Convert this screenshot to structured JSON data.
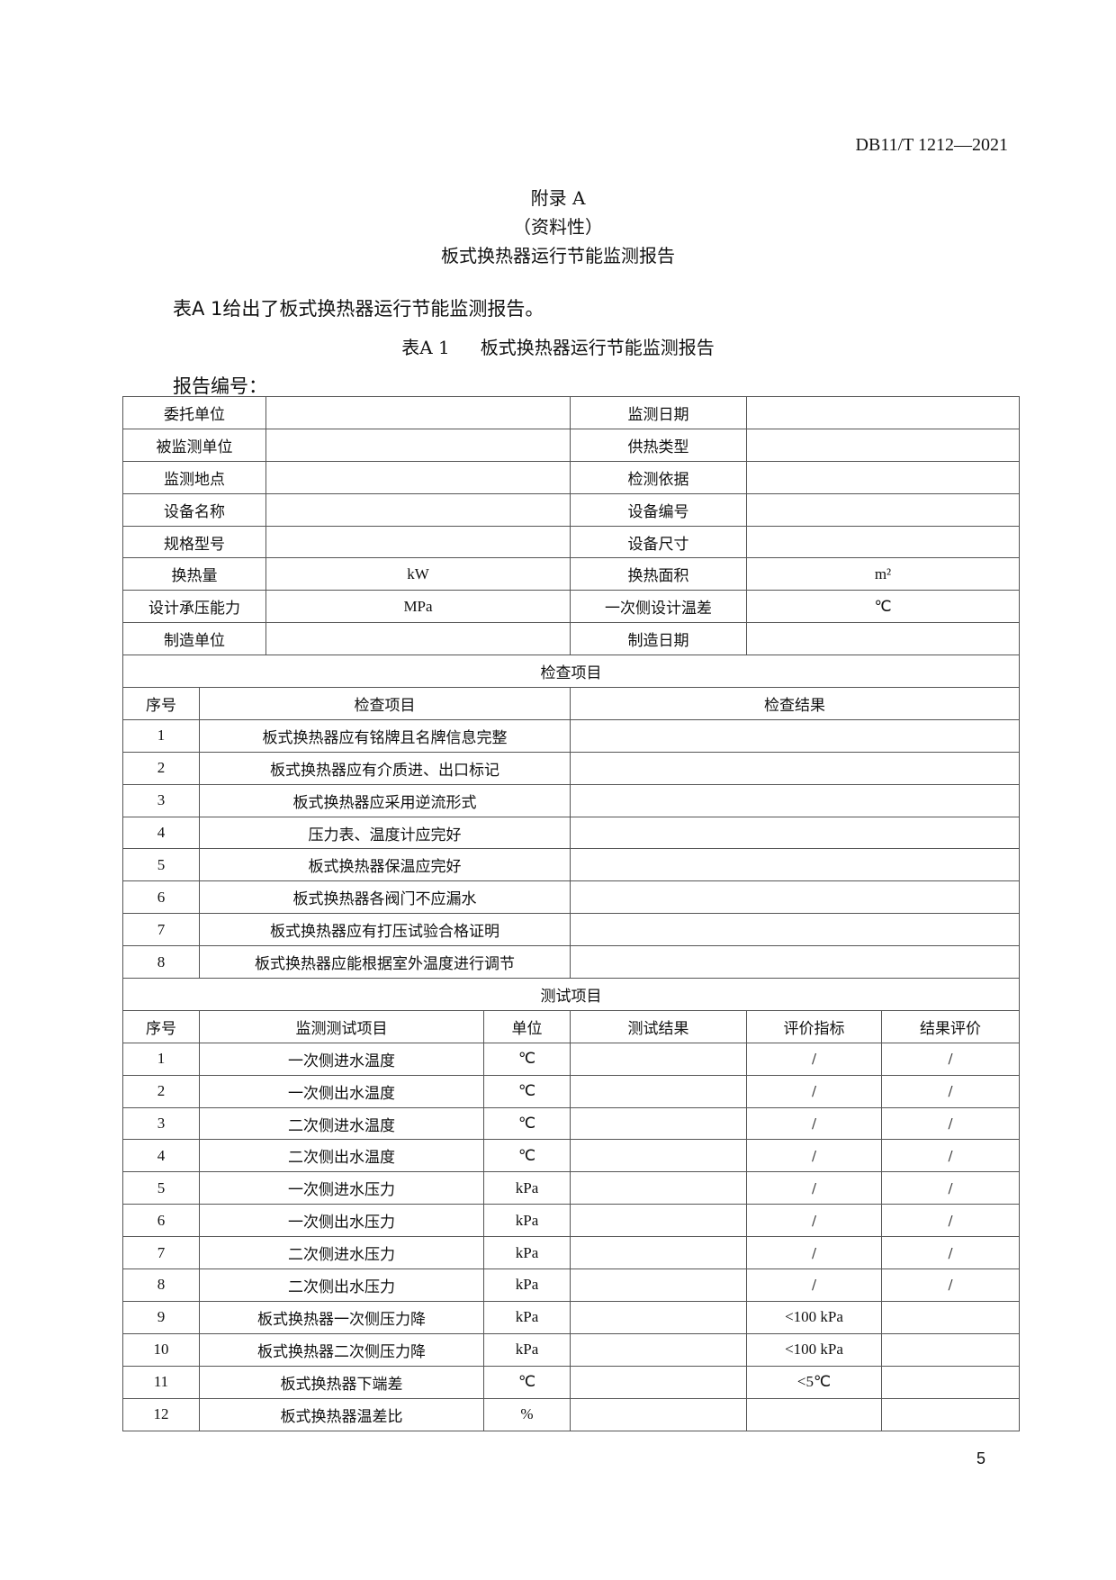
{
  "header": {
    "doc_number": "DB11/T 1212—2021"
  },
  "titles": {
    "appendix": "附录 A",
    "nature": "（资料性）",
    "title": "板式换热器运行节能监测报告"
  },
  "intro": "表A 1给出了板式换热器运行节能监测报告。",
  "caption": {
    "label": "表A 1",
    "title": "板式换热器运行节能监测报告"
  },
  "report_number_label": "报告编号：",
  "info_rows": [
    {
      "label1": "委托单位",
      "value1": "",
      "label2": "监测日期",
      "value2": ""
    },
    {
      "label1": "被监测单位",
      "value1": "",
      "label2": "供热类型",
      "value2": ""
    },
    {
      "label1": "监测地点",
      "value1": "",
      "label2": "检测依据",
      "value2": ""
    },
    {
      "label1": "设备名称",
      "value1": "",
      "label2": "设备编号",
      "value2": ""
    },
    {
      "label1": "规格型号",
      "value1": "",
      "label2": "设备尺寸",
      "value2": ""
    },
    {
      "label1": "换热量",
      "value1": "kW",
      "label2": "换热面积",
      "value2": "m²"
    },
    {
      "label1": "设计承压能力",
      "value1": "MPa",
      "label2": "一次侧设计温差",
      "value2": "℃"
    },
    {
      "label1": "制造单位",
      "value1": "",
      "label2": "制造日期",
      "value2": ""
    }
  ],
  "inspection": {
    "section_title": "检查项目",
    "headers": {
      "no": "序号",
      "item": "检查项目",
      "result": "检查结果"
    },
    "rows": [
      {
        "no": "1",
        "item": "板式换热器应有铭牌且名牌信息完整"
      },
      {
        "no": "2",
        "item": "板式换热器应有介质进、出口标记"
      },
      {
        "no": "3",
        "item": "板式换热器应采用逆流形式"
      },
      {
        "no": "4",
        "item": "压力表、温度计应完好"
      },
      {
        "no": "5",
        "item": "板式换热器保温应完好"
      },
      {
        "no": "6",
        "item": "板式换热器各阀门不应漏水"
      },
      {
        "no": "7",
        "item": "板式换热器应有打压试验合格证明"
      },
      {
        "no": "8",
        "item": "板式换热器应能根据室外温度进行调节"
      }
    ]
  },
  "testing": {
    "section_title": "测试项目",
    "headers": {
      "no": "序号",
      "item": "监测测试项目",
      "unit": "单位",
      "result": "测试结果",
      "index": "评价指标",
      "evaluation": "结果评价"
    },
    "rows": [
      {
        "no": "1",
        "item": "一次侧进水温度",
        "unit": "℃",
        "index": "/",
        "evaluation": "/"
      },
      {
        "no": "2",
        "item": "一次侧出水温度",
        "unit": "℃",
        "index": "/",
        "evaluation": "/"
      },
      {
        "no": "3",
        "item": "二次侧进水温度",
        "unit": "℃",
        "index": "/",
        "evaluation": "/"
      },
      {
        "no": "4",
        "item": "二次侧出水温度",
        "unit": "℃",
        "index": "/",
        "evaluation": "/"
      },
      {
        "no": "5",
        "item": "一次侧进水压力",
        "unit": "kPa",
        "index": "/",
        "evaluation": "/"
      },
      {
        "no": "6",
        "item": "一次侧出水压力",
        "unit": "kPa",
        "index": "/",
        "evaluation": "/"
      },
      {
        "no": "7",
        "item": "二次侧进水压力",
        "unit": "kPa",
        "index": "/",
        "evaluation": "/"
      },
      {
        "no": "8",
        "item": "二次侧出水压力",
        "unit": "kPa",
        "index": "/",
        "evaluation": "/"
      },
      {
        "no": "9",
        "item": "板式换热器一次侧压力降",
        "unit": "kPa",
        "index": "<100 kPa",
        "evaluation": ""
      },
      {
        "no": "10",
        "item": "板式换热器二次侧压力降",
        "unit": "kPa",
        "index": "<100 kPa",
        "evaluation": ""
      },
      {
        "no": "11",
        "item": "板式换热器下端差",
        "unit": "℃",
        "index": "<5℃",
        "evaluation": ""
      },
      {
        "no": "12",
        "item": "板式换热器温差比",
        "unit": "%",
        "index": "",
        "evaluation": ""
      }
    ]
  },
  "page_number": "5"
}
